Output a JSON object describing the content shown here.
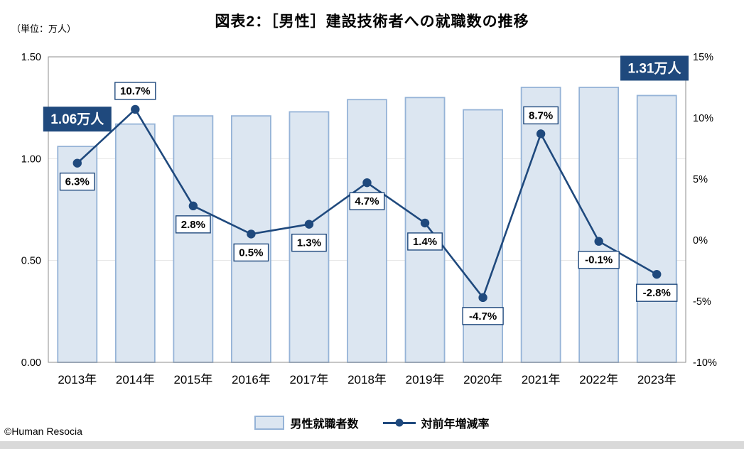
{
  "title": "図表2：［男性］建設技術者への就職数の推移",
  "unit_label": "（単位：万人）",
  "copyright": "©Human Resocia",
  "colors": {
    "bar_fill": "#dce6f1",
    "bar_border": "#95b3d7",
    "line": "#1f497d",
    "callout_bg": "#1f497d",
    "footer_strip": "#d9d9d9"
  },
  "legend": [
    {
      "label": "男性就職者数",
      "type": "bar"
    },
    {
      "label": "対前年増減率",
      "type": "line"
    }
  ],
  "chart_data": {
    "type": "bar+line",
    "title": "図表2：［男性］建設技術者への就職数の推移",
    "categories": [
      "2013年",
      "2014年",
      "2015年",
      "2016年",
      "2017年",
      "2018年",
      "2019年",
      "2020年",
      "2021年",
      "2022年",
      "2023年"
    ],
    "series": [
      {
        "name": "男性就職者数",
        "type": "bar",
        "axis": "left",
        "unit": "万人",
        "values": [
          1.06,
          1.17,
          1.21,
          1.21,
          1.23,
          1.29,
          1.3,
          1.24,
          1.35,
          1.35,
          1.31
        ]
      },
      {
        "name": "対前年増減率",
        "type": "line",
        "axis": "right",
        "unit": "%",
        "values": [
          6.3,
          10.7,
          2.8,
          0.5,
          1.3,
          4.7,
          1.4,
          -4.7,
          8.7,
          -0.1,
          -2.8
        ],
        "labels": [
          "6.3%",
          "10.7%",
          "2.8%",
          "0.5%",
          "1.3%",
          "4.7%",
          "1.4%",
          "-4.7%",
          "8.7%",
          "-0.1%",
          "-2.8%"
        ],
        "label_positions": [
          "below",
          "above",
          "below",
          "below",
          "below",
          "below",
          "below",
          "below",
          "above",
          "below",
          "below"
        ]
      }
    ],
    "left_axis": {
      "min": 0,
      "max": 1.5,
      "ticks": [
        "0.00",
        "0.50",
        "1.00",
        "1.50"
      ]
    },
    "right_axis": {
      "min": -10,
      "max": 15,
      "ticks": [
        "-10%",
        "-5%",
        "0%",
        "5%",
        "10%",
        "15%"
      ]
    },
    "callouts": [
      {
        "index": 0,
        "text": "1.06万人"
      },
      {
        "index": 10,
        "text": "1.31万人"
      }
    ],
    "grid": "light horizontal at 0.50 and 1.00",
    "legend_position": "bottom-center"
  }
}
